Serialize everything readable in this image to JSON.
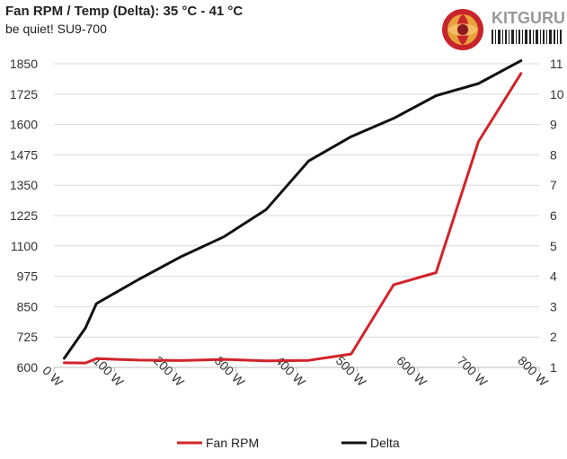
{
  "header": {
    "title": "Fan RPM / Temp (Delta): 35 °C - 41 °C",
    "subtitle": "be quiet! SU9-700"
  },
  "logo": {
    "text": "KITGURU",
    "icon": "kitguru-logo-icon"
  },
  "chart_data": {
    "type": "line",
    "title": "Fan RPM / Temp (Delta): 35 °C - 41 °C",
    "subtitle": "be quiet! SU9-700",
    "x_ticks": [
      "0 W",
      "100 W",
      "200 W",
      "300 W",
      "400 W",
      "500 W",
      "600 W",
      "700 W",
      "800 W"
    ],
    "xlim": [
      0,
      800
    ],
    "y_left_ticks": [
      "600",
      "725",
      "850",
      "975",
      "1100",
      "1225",
      "1350",
      "1475",
      "1600",
      "1725",
      "1850"
    ],
    "ylim_left": [
      600,
      1850
    ],
    "y_right_ticks": [
      "1",
      "2",
      "3",
      "4",
      "5",
      "6",
      "7",
      "8",
      "9",
      "10",
      "11"
    ],
    "ylim_right": [
      1,
      11
    ],
    "grid": true,
    "legend_position": "bottom",
    "series": [
      {
        "name": "Fan RPM",
        "axis": "left",
        "color": "#d2232a",
        "x": [
          17,
          52,
          70,
          140,
          210,
          280,
          350,
          420,
          490,
          560,
          630,
          700,
          770
        ],
        "y": [
          619,
          618,
          636,
          630,
          628,
          633,
          627,
          629,
          655,
          940,
          990,
          1530,
          1810
        ]
      },
      {
        "name": "Delta",
        "axis": "right",
        "color": "#111111",
        "x": [
          17,
          52,
          70,
          140,
          210,
          280,
          350,
          420,
          490,
          560,
          630,
          700,
          770
        ],
        "y": [
          1.3,
          2.3,
          3.1,
          3.9,
          4.65,
          5.3,
          6.2,
          7.8,
          8.6,
          9.2,
          9.95,
          10.35,
          11.1
        ]
      }
    ]
  }
}
